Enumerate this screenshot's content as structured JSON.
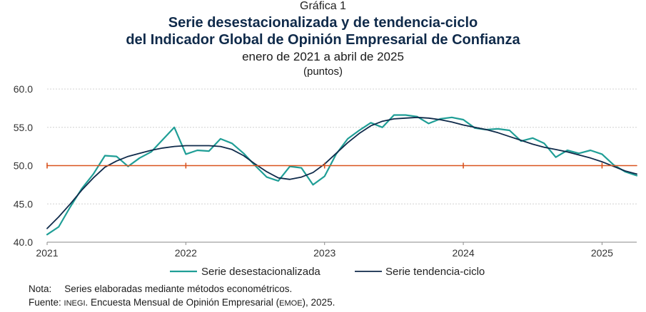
{
  "header": {
    "kicker": "Gráfica 1",
    "title_line1": "Serie desestacionalizada y de tendencia-ciclo",
    "title_line2": "del Indicador Global de Opinión Empresarial de Confianza",
    "subtitle": "enero de 2021 a abril de 2025",
    "units": "(puntos)"
  },
  "chart_data": {
    "type": "line",
    "title": "Serie desestacionalizada y de tendencia-ciclo del Indicador Global de Opinión Empresarial de Confianza",
    "subtitle": "enero de 2021 a abril de 2025",
    "ylabel": "(puntos)",
    "ylim": [
      40.0,
      60.0
    ],
    "yticks": [
      "60.0",
      "55.0",
      "50.0",
      "45.0",
      "40.0"
    ],
    "xticks": [
      "2021",
      "2022",
      "2023",
      "2024",
      "2025"
    ],
    "x_start": "2021-01",
    "x_end": "2025-04",
    "reference_line": 50.0,
    "legend_position": "bottom",
    "grid": "horizontal",
    "series": [
      {
        "name": "Serie desestacionalizada",
        "color": "#1f9e96",
        "values": [
          41.0,
          42.0,
          44.6,
          47.0,
          48.9,
          51.3,
          51.2,
          49.9,
          51.0,
          51.8,
          53.4,
          55.0,
          51.5,
          52.0,
          51.9,
          53.5,
          52.9,
          51.6,
          50.0,
          48.5,
          48.0,
          49.9,
          49.7,
          47.5,
          48.6,
          51.5,
          53.5,
          54.6,
          55.6,
          55.0,
          56.6,
          56.6,
          56.4,
          55.5,
          56.1,
          56.3,
          56.0,
          54.9,
          54.7,
          54.8,
          54.6,
          53.2,
          53.6,
          52.9,
          51.1,
          52.0,
          51.6,
          52.0,
          51.5,
          50.1,
          49.2,
          48.7
        ]
      },
      {
        "name": "Serie tendencia-ciclo",
        "color": "#0f2a4a",
        "values": [
          41.8,
          43.3,
          45.0,
          46.8,
          48.4,
          49.8,
          50.6,
          51.2,
          51.6,
          52.0,
          52.3,
          52.5,
          52.6,
          52.6,
          52.6,
          52.5,
          52.1,
          51.3,
          50.2,
          49.2,
          48.4,
          48.2,
          48.5,
          49.1,
          50.2,
          51.6,
          53.0,
          54.2,
          55.2,
          55.8,
          56.1,
          56.2,
          56.3,
          56.2,
          56.0,
          55.7,
          55.3,
          55.0,
          54.7,
          54.3,
          53.8,
          53.3,
          52.8,
          52.4,
          52.1,
          51.8,
          51.4,
          51.0,
          50.5,
          49.9,
          49.3,
          48.9
        ]
      },
      {
        "name": "",
        "color": "#d9531e",
        "values": [
          50.0,
          50.0,
          50.0,
          50.0,
          50.0,
          50.0,
          50.0,
          50.0,
          50.0,
          50.0,
          50.0,
          50.0,
          50.0,
          50.0,
          50.0,
          50.0,
          50.0,
          50.0,
          50.0,
          50.0,
          50.0,
          50.0,
          50.0,
          50.0,
          50.0,
          50.0,
          50.0,
          50.0,
          50.0,
          50.0,
          50.0,
          50.0,
          50.0,
          50.0,
          50.0,
          50.0,
          50.0,
          50.0,
          50.0,
          50.0,
          50.0,
          50.0,
          50.0,
          50.0,
          50.0,
          50.0,
          50.0,
          50.0,
          50.0,
          50.0,
          50.0,
          50.0
        ]
      }
    ]
  },
  "notes": {
    "nota_label": "Nota:",
    "nota_text": "Series elaboradas mediante métodos econométricos.",
    "fuente_label": "Fuente:",
    "fuente_part1": "INEGI",
    "fuente_part2": ". Encuesta Mensual de Opinión Empresarial (",
    "fuente_part3": "EMOE",
    "fuente_part4": "), 2025."
  }
}
